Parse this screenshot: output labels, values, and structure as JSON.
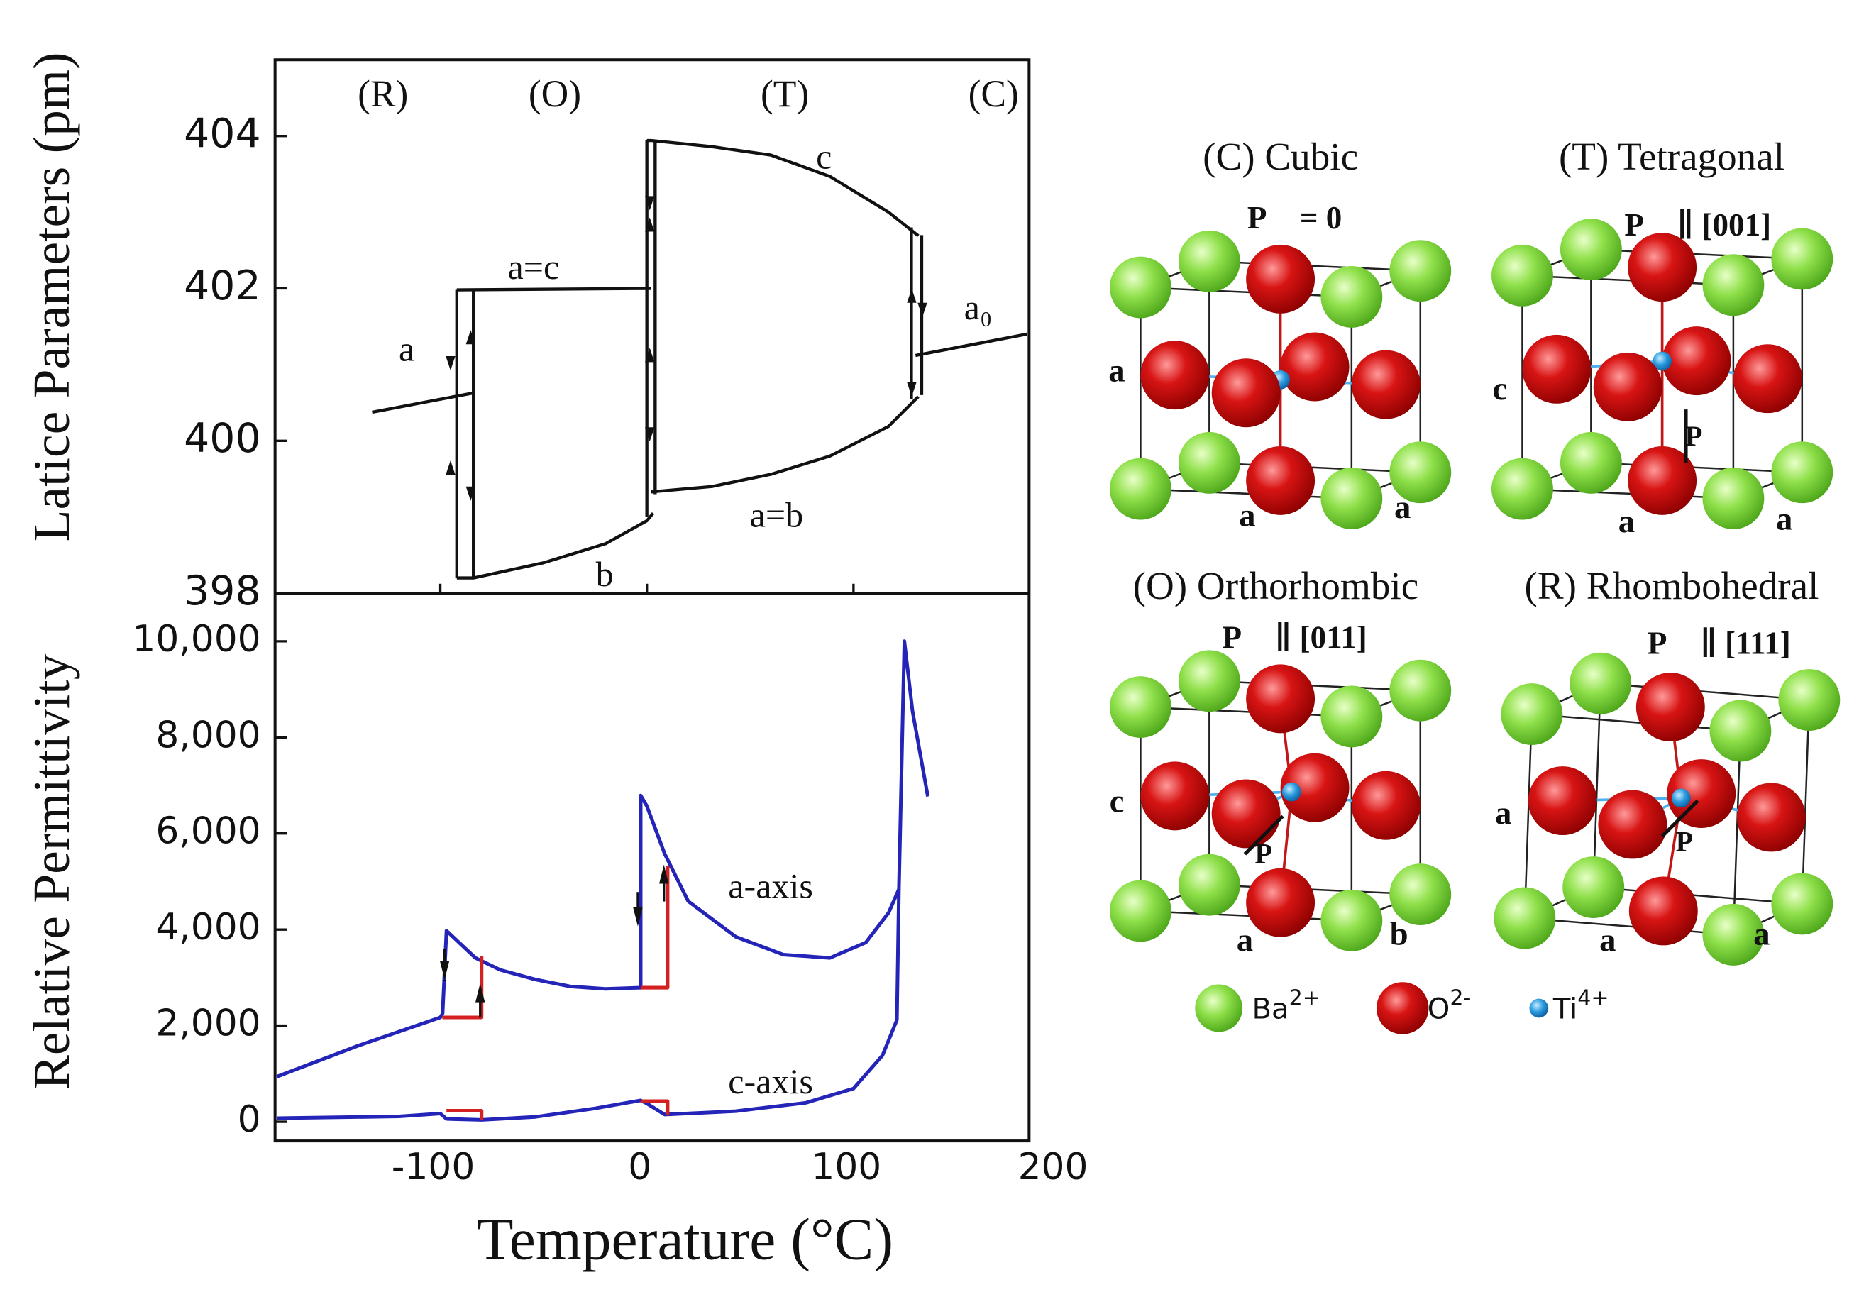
{
  "chart_data": [
    {
      "type": "line",
      "ylabel": "Latice Parameters (pm)",
      "phases": [
        "(R)",
        "(O)",
        "(T)",
        "(C)"
      ],
      "xlim": [
        -180,
        185
      ],
      "ylim": [
        398,
        405
      ],
      "yticks": [
        398,
        400,
        402,
        404
      ],
      "series": [
        {
          "name": "a",
          "color": "#111111",
          "x": [
            -133,
            -84.6
          ],
          "values": [
            400.375,
            400.625
          ]
        },
        {
          "name": "a=c",
          "color": "#111111",
          "x": [
            -92,
            2
          ],
          "values": [
            401.98,
            402.0
          ]
        },
        {
          "name": "b",
          "color": "#111111",
          "x": [
            -92,
            -84,
            -50,
            -20,
            0,
            3
          ],
          "values": [
            398.2,
            398.2,
            398.4,
            398.65,
            398.95,
            399.05
          ]
        },
        {
          "name": "c",
          "color": "#111111",
          "x": [
            0,
            2,
            31.4,
            60,
            88.6,
            117,
            131.4
          ],
          "values": [
            403.94,
            403.94,
            403.86,
            403.75,
            403.47,
            403.0,
            402.69
          ]
        },
        {
          "name": "a=b",
          "color": "#111111",
          "x": [
            2,
            31.4,
            60,
            88.6,
            117,
            131.4
          ],
          "values": [
            399.33,
            399.4,
            399.56,
            399.8,
            400.19,
            400.58
          ]
        },
        {
          "name": "a₀",
          "color": "#111111",
          "x": [
            130,
            184
          ],
          "values": [
            401.12,
            401.4
          ]
        },
        {
          "color": "#111111",
          "x": [
            -92,
            -92
          ],
          "values": [
            398.2,
            401.98
          ]
        },
        {
          "color": "#111111",
          "x": [
            -84,
            -84
          ],
          "values": [
            398.2,
            401.98
          ]
        },
        {
          "color": "#111111",
          "x": [
            0,
            0
          ],
          "values": [
            399.0,
            403.94
          ]
        },
        {
          "color": "#111111",
          "x": [
            4,
            4
          ],
          "values": [
            399.3,
            403.94
          ]
        },
        {
          "color": "#111111",
          "x": [
            128,
            128
          ],
          "values": [
            400.55,
            402.8
          ]
        },
        {
          "color": "#111111",
          "x": [
            133,
            133
          ],
          "values": [
            400.6,
            402.7
          ]
        }
      ]
    },
    {
      "type": "line",
      "xlabel": "Temperature (°C)",
      "ylabel": "Relative Permittivity",
      "xlim": [
        -180,
        185
      ],
      "ylim": [
        -400,
        11000
      ],
      "xticks": [
        -100,
        0,
        100,
        200
      ],
      "yticks": [
        0,
        {
          "value": 2000,
          "label": "2,000"
        },
        {
          "value": 4000,
          "label": "4,000"
        },
        {
          "value": 6000,
          "label": "6,000"
        },
        {
          "value": 8000,
          "label": "8,000"
        },
        {
          "value": 10000,
          "label": "10,000"
        }
      ],
      "series": [
        {
          "name": "a-axis",
          "color": "#2424b8",
          "x": [
            -179,
            -140,
            -100,
            -98.9,
            -97,
            -83,
            -71,
            -54,
            -37,
            -20,
            -3,
            -3,
            0,
            8.6,
            20,
            43,
            66,
            88.6,
            106,
            117,
            122,
            124.6,
            128.6,
            136
          ],
          "values": [
            940,
            1580,
            2170,
            2250,
            3975,
            3410,
            3160,
            2960,
            2815,
            2765,
            2790,
            6790,
            6570,
            5580,
            4590,
            3850,
            3480,
            3410,
            3730,
            4350,
            4840,
            10000,
            8540,
            6770
          ]
        },
        {
          "color": "#d42020",
          "x": [
            -99,
            -80,
            -80
          ],
          "values": [
            2170,
            2170,
            3450
          ]
        },
        {
          "color": "#d42020",
          "x": [
            -3,
            10,
            10
          ],
          "values": [
            2790,
            2790,
            5330
          ]
        },
        {
          "name": "c-axis",
          "color": "#2424b8",
          "x": [
            -179,
            -120,
            -100,
            -97,
            -80,
            -54,
            -26,
            -3,
            0,
            8.6,
            43,
            77,
            100,
            114,
            121,
            122
          ],
          "values": [
            75,
            110,
            170,
            60,
            40,
            100,
            270,
            445,
            380,
            150,
            220,
            395,
            690,
            1380,
            2120,
            4840
          ]
        },
        {
          "color": "#d42020",
          "x": [
            -97,
            -80,
            -80
          ],
          "values": [
            230,
            230,
            40
          ]
        },
        {
          "color": "#d42020",
          "x": [
            -3,
            10,
            10
          ],
          "values": [
            430,
            430,
            130
          ]
        }
      ]
    }
  ],
  "structures": [
    {
      "title": "(C) Cubic",
      "polarization": "P⃗ = 0",
      "edges": [
        "a",
        "a",
        "a"
      ]
    },
    {
      "title": "(T) Tetragonal",
      "polarization": "P⃗ ∥ [001]",
      "edges": [
        "c",
        "a",
        "a"
      ],
      "vector": "P⃗"
    },
    {
      "title": "(O) Orthorhombic",
      "polarization": "P⃗ ∥ [011]",
      "edges": [
        "c",
        "a",
        "b"
      ],
      "vector": "P⃗"
    },
    {
      "title": "(R) Rhombohedral",
      "polarization": "P⃗ ∥ [111]",
      "edges": [
        "a",
        "a",
        "a"
      ],
      "vector": "P⃗"
    }
  ],
  "legend": [
    {
      "ion": "Ba",
      "charge": "2+"
    },
    {
      "ion": "O",
      "charge": "2-"
    },
    {
      "ion": "Ti",
      "charge": "4+"
    }
  ]
}
